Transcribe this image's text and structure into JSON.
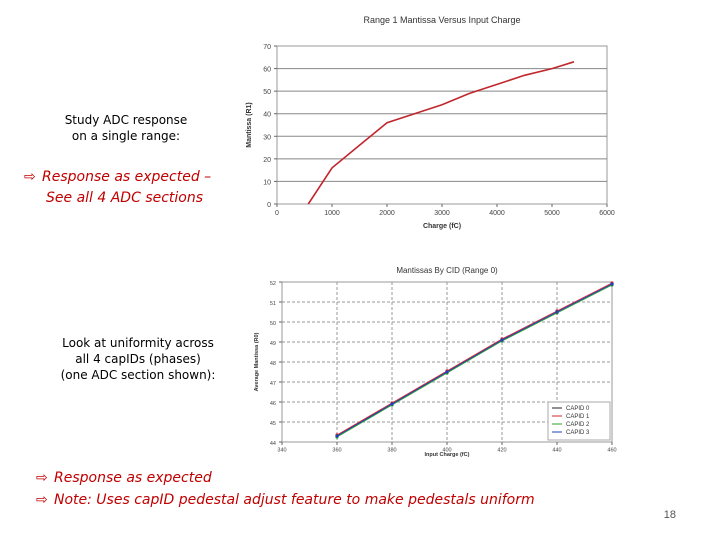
{
  "slide": {
    "study_line1": "Study ADC response",
    "study_line2": "on a single range:",
    "bullet1_line1": "Response as expected –",
    "bullet1_line2": "See all 4 ADC sections",
    "uniformity_line1": "Look at uniformity across",
    "uniformity_line2": "all 4 capIDs (phases)",
    "uniformity_line3": "(one ADC section shown):",
    "bullet2": "Response as expected",
    "bullet3": "Note:  Uses capID pedestal adjust feature to make pedestals uniform",
    "page_number": "18",
    "arrow_glyph": "⇨",
    "accent_color": "#c00000"
  },
  "chart_data": [
    {
      "type": "line",
      "title": "Range 1 Mantissa Versus Input Charge",
      "xlabel": "Charge (fC)",
      "ylabel": "Mantissa (R1)",
      "xlim": [
        0,
        6000
      ],
      "ylim": [
        0,
        70
      ],
      "xticks": [
        0,
        1000,
        2000,
        3000,
        4000,
        5000,
        6000
      ],
      "yticks": [
        0,
        10,
        20,
        30,
        40,
        50,
        60,
        70
      ],
      "grid": "horizontal",
      "series": [
        {
          "color": "#c0272d",
          "x": [
            570,
            1000,
            1500,
            2000,
            2500,
            3000,
            3500,
            4000,
            4500,
            5000,
            5400
          ],
          "y": [
            0,
            16,
            26,
            36,
            40,
            44,
            49,
            53,
            57,
            60,
            63
          ]
        }
      ]
    },
    {
      "type": "line",
      "title": "Mantissas By CID (Range 0)",
      "xlabel": "Input Charge (fC)",
      "ylabel": "Average Mantissa (R0)",
      "xlim": [
        340,
        460
      ],
      "ylim": [
        44,
        52
      ],
      "xticks": [
        340,
        360,
        380,
        400,
        420,
        440,
        460
      ],
      "yticks": [
        44,
        45,
        46,
        47,
        48,
        49,
        50,
        51,
        52
      ],
      "grid": "both",
      "legend": "bottom-right",
      "series": [
        {
          "name": "CAPID 0",
          "color": "#222222",
          "x": [
            360,
            380,
            400,
            420,
            440,
            460
          ],
          "y": [
            44.3,
            45.9,
            47.5,
            49.1,
            50.5,
            51.9
          ]
        },
        {
          "name": "CAPID 1",
          "color": "#d62728",
          "x": [
            360,
            380,
            400,
            420,
            440,
            460
          ],
          "y": [
            44.35,
            45.95,
            47.55,
            49.15,
            50.55,
            51.95
          ]
        },
        {
          "name": "CAPID 2",
          "color": "#2ca02c",
          "x": [
            360,
            380,
            400,
            420,
            440,
            460
          ],
          "y": [
            44.25,
            45.85,
            47.45,
            49.05,
            50.45,
            51.85
          ]
        },
        {
          "name": "CAPID 3",
          "color": "#1f3fbf",
          "x": [
            360,
            380,
            400,
            420,
            440,
            460
          ],
          "y": [
            44.3,
            45.9,
            47.5,
            49.1,
            50.5,
            51.9
          ]
        }
      ]
    }
  ]
}
